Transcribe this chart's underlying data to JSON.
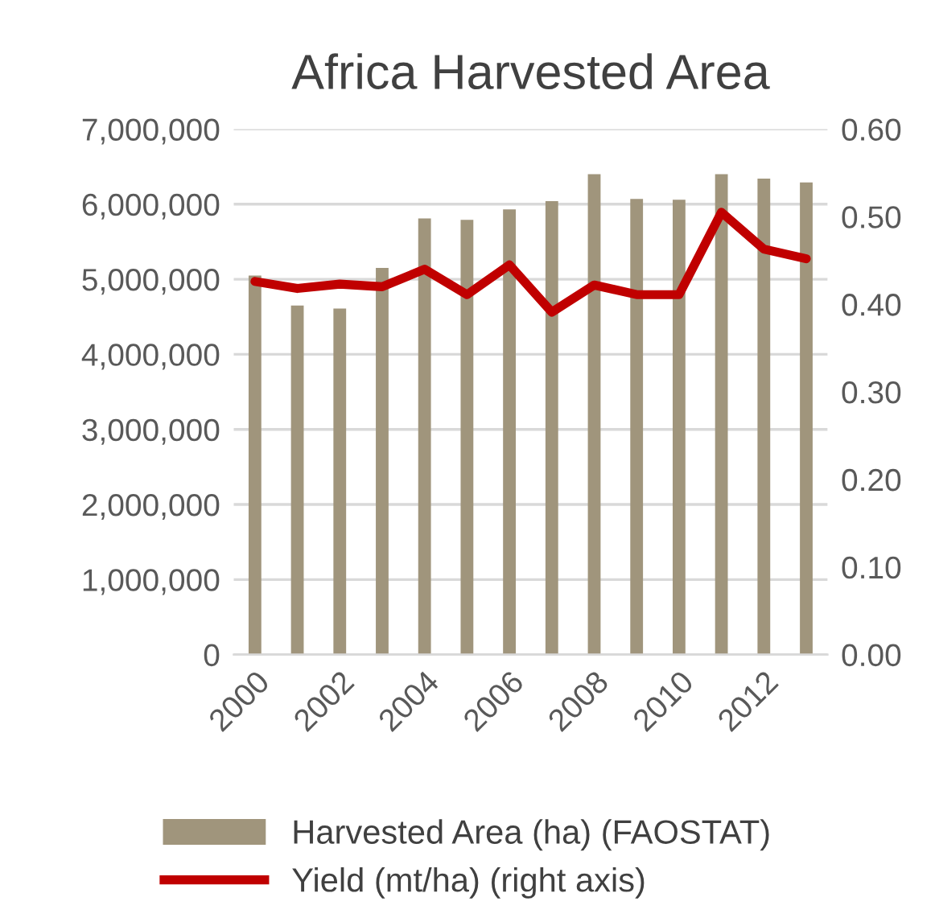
{
  "chart_data": {
    "type": "bar",
    "title": "Africa Harvested Area",
    "categories": [
      "2000",
      null,
      "2002",
      null,
      "2004",
      null,
      "2006",
      null,
      "2008",
      null,
      "2010",
      null,
      "2012",
      null
    ],
    "series": [
      {
        "name": "Harvested Area (ha) (FAOSTAT)",
        "color": "#a0957c",
        "values": [
          5050000,
          4650000,
          4610000,
          5150000,
          5810000,
          5790000,
          5930000,
          6040000,
          6400000,
          6070000,
          6060000,
          6400000,
          6340000,
          6290000
        ]
      },
      {
        "name": "Yield (mt/ha) (right axis)",
        "type": "line",
        "axis": "y2",
        "color": "#c00000",
        "values": [
          0.426,
          0.418,
          0.423,
          0.42,
          0.44,
          0.411,
          0.445,
          0.391,
          0.422,
          0.411,
          0.411,
          0.505,
          0.463,
          0.452
        ]
      }
    ],
    "ylim": [
      0,
      7000000
    ],
    "yticks": [
      {
        "value": 0,
        "label": "0"
      },
      {
        "value": 1000000,
        "label": "1,000,000"
      },
      {
        "value": 2000000,
        "label": "2,000,000"
      },
      {
        "value": 3000000,
        "label": "3,000,000"
      },
      {
        "value": 4000000,
        "label": "4,000,000"
      },
      {
        "value": 5000000,
        "label": "5,000,000"
      },
      {
        "value": 6000000,
        "label": "6,000,000"
      },
      {
        "value": 7000000,
        "label": "7,000,000"
      }
    ],
    "y2lim": [
      0,
      0.6
    ],
    "y2ticks": [
      {
        "value": 0,
        "label": "0.00"
      },
      {
        "value": 0.1,
        "label": "0.10"
      },
      {
        "value": 0.2,
        "label": "0.20"
      },
      {
        "value": 0.3,
        "label": "0.30"
      },
      {
        "value": 0.4,
        "label": "0.40"
      },
      {
        "value": 0.5,
        "label": "0.50"
      },
      {
        "value": 0.6,
        "label": "0.60"
      }
    ],
    "grid": "y",
    "legend": "bottom",
    "marker": "none",
    "line_style": "solid"
  }
}
